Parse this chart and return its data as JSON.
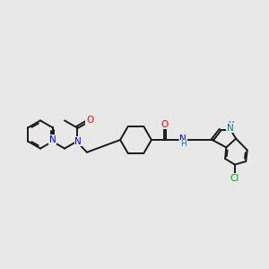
{
  "bg_color": "#e8e8e8",
  "bond_color": "#1a1a1a",
  "N_color": "#0000ff",
  "O_color": "#ff0000",
  "Cl_color": "#00aa00",
  "NH_color": "#008080",
  "lw": 1.4,
  "fs": 7.5,
  "figsize": [
    3.0,
    3.0
  ],
  "dpi": 100,
  "xlim": [
    0,
    10
  ],
  "ylim": [
    1,
    8
  ]
}
